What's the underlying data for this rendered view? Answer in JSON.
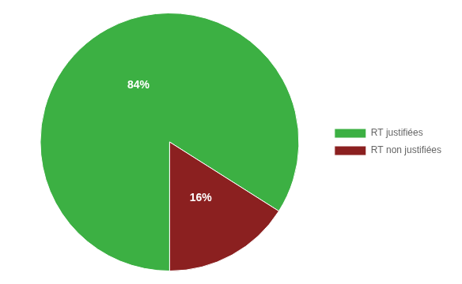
{
  "chart_data": {
    "type": "pie",
    "categories": [
      "RT justifiées",
      "RT non justifiées"
    ],
    "values": [
      84,
      16
    ],
    "value_labels": [
      "84%",
      "16%"
    ],
    "colors": [
      "#3cb043",
      "#8b2020"
    ],
    "data_labels": true,
    "legend": "right"
  }
}
